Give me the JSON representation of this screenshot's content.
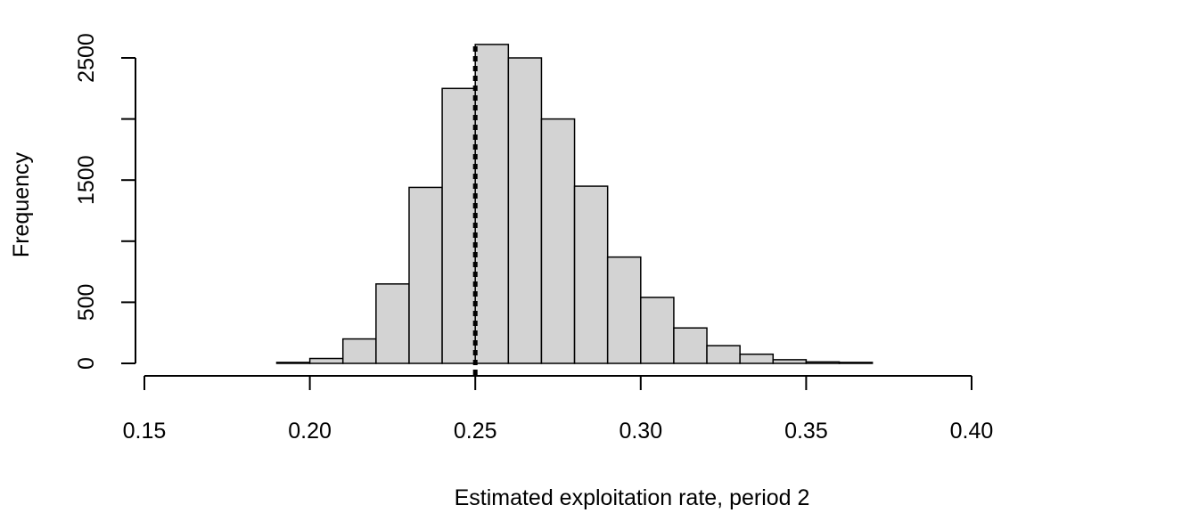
{
  "chart_data": {
    "type": "bar",
    "subtype": "histogram",
    "title": "",
    "xlabel": "Estimated exploitation rate, period 2",
    "ylabel": "Frequency",
    "xlim": [
      0.15,
      0.4
    ],
    "ylim": [
      0,
      2600
    ],
    "x_ticks": [
      "0.15",
      "0.20",
      "0.25",
      "0.30",
      "0.35",
      "0.40"
    ],
    "y_ticks": [
      "0",
      "500",
      "1500",
      "2500"
    ],
    "bin_width": 0.01,
    "bins": [
      {
        "start": 0.19,
        "end": 0.2,
        "count": 8
      },
      {
        "start": 0.2,
        "end": 0.21,
        "count": 40
      },
      {
        "start": 0.21,
        "end": 0.22,
        "count": 200
      },
      {
        "start": 0.22,
        "end": 0.23,
        "count": 650
      },
      {
        "start": 0.23,
        "end": 0.24,
        "count": 1440
      },
      {
        "start": 0.24,
        "end": 0.25,
        "count": 2250
      },
      {
        "start": 0.25,
        "end": 0.26,
        "count": 2610
      },
      {
        "start": 0.26,
        "end": 0.27,
        "count": 2500
      },
      {
        "start": 0.27,
        "end": 0.28,
        "count": 2000
      },
      {
        "start": 0.28,
        "end": 0.29,
        "count": 1450
      },
      {
        "start": 0.29,
        "end": 0.3,
        "count": 870
      },
      {
        "start": 0.3,
        "end": 0.31,
        "count": 540
      },
      {
        "start": 0.31,
        "end": 0.32,
        "count": 290
      },
      {
        "start": 0.32,
        "end": 0.33,
        "count": 145
      },
      {
        "start": 0.33,
        "end": 0.34,
        "count": 75
      },
      {
        "start": 0.34,
        "end": 0.35,
        "count": 30
      },
      {
        "start": 0.35,
        "end": 0.36,
        "count": 12
      },
      {
        "start": 0.36,
        "end": 0.37,
        "count": 8
      }
    ],
    "reference_line": {
      "x": 0.25,
      "style": "dotted"
    },
    "bar_fill": "#d3d3d3",
    "bar_stroke": "#000000",
    "grid": false,
    "legend": "none"
  }
}
